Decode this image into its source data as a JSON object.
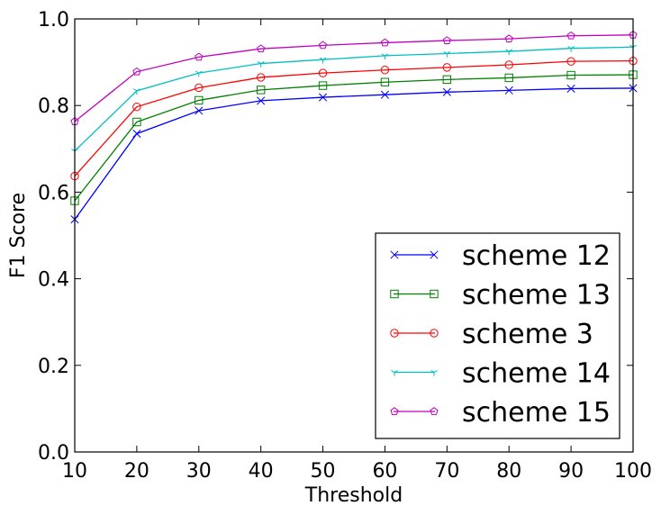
{
  "chart_data": {
    "type": "line",
    "title": "",
    "xlabel": "Threshold",
    "ylabel": "F1 Score",
    "xlim": [
      10,
      100
    ],
    "ylim": [
      0.0,
      1.0
    ],
    "x": [
      10,
      20,
      30,
      40,
      50,
      60,
      70,
      80,
      90,
      100
    ],
    "x_ticks": [
      "10",
      "20",
      "30",
      "40",
      "50",
      "60",
      "70",
      "80",
      "90",
      "100"
    ],
    "y_ticks": [
      "0.0",
      "0.2",
      "0.4",
      "0.6",
      "0.8",
      "1.0"
    ],
    "grid": false,
    "legend_position": "lower-right",
    "series": [
      {
        "name": "scheme 12",
        "color": "#0000ff",
        "marker": "x",
        "values": [
          0.537,
          0.735,
          0.788,
          0.811,
          0.819,
          0.825,
          0.831,
          0.835,
          0.839,
          0.84
        ]
      },
      {
        "name": "scheme 13",
        "color": "#008000",
        "marker": "square",
        "values": [
          0.58,
          0.762,
          0.812,
          0.836,
          0.846,
          0.854,
          0.86,
          0.864,
          0.87,
          0.871
        ]
      },
      {
        "name": "scheme 3",
        "color": "#ff0000",
        "marker": "circle",
        "values": [
          0.637,
          0.797,
          0.841,
          0.865,
          0.875,
          0.882,
          0.888,
          0.894,
          0.902,
          0.903
        ]
      },
      {
        "name": "scheme 14",
        "color": "#00bfbf",
        "marker": "tri-down",
        "values": [
          0.695,
          0.834,
          0.875,
          0.897,
          0.906,
          0.915,
          0.92,
          0.925,
          0.932,
          0.935
        ]
      },
      {
        "name": "scheme 15",
        "color": "#bf00bf",
        "marker": "pentagon",
        "values": [
          0.763,
          0.878,
          0.912,
          0.931,
          0.939,
          0.945,
          0.95,
          0.954,
          0.961,
          0.963
        ]
      }
    ]
  }
}
